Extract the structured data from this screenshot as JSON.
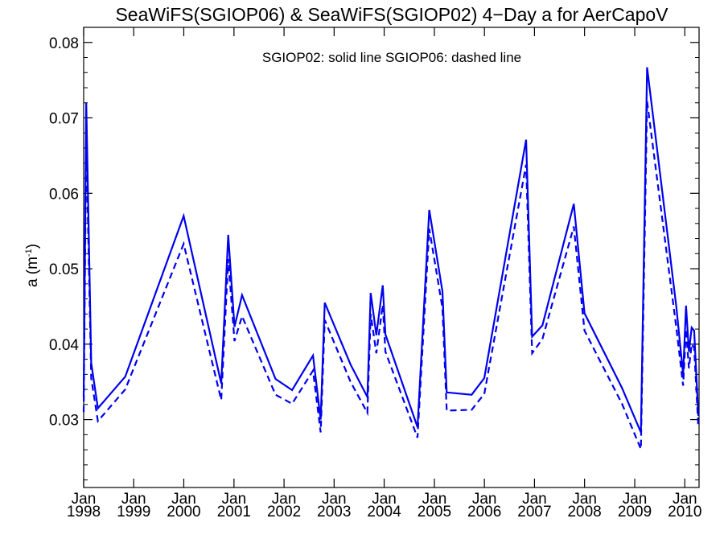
{
  "chart_data": {
    "type": "line",
    "title": "SeaWiFS(SGIOP06) & SeaWiFS(SGIOP02) 4−Day a for AerCapoV",
    "annotation": "SGIOP02: solid line   SGIOP06: dashed line",
    "ylabel": "a (m",
    "ylabel_sup": "-1",
    "ylabel_close": ")",
    "xlabel": "",
    "xlim": [
      "1998-01-01",
      "2010-04-15"
    ],
    "ylim": [
      0.021,
      0.082
    ],
    "yticks": [
      0.03,
      0.04,
      0.05,
      0.06,
      0.07,
      0.08
    ],
    "ytick_labels": [
      "0.03",
      "0.04",
      "0.05",
      "0.06",
      "0.07",
      "0.08"
    ],
    "xticks": [
      {
        "date": "1998-01-01",
        "month": "Jan",
        "year": "1998"
      },
      {
        "date": "1999-01-01",
        "month": "Jan",
        "year": "1999"
      },
      {
        "date": "2000-01-01",
        "month": "Jan",
        "year": "2000"
      },
      {
        "date": "2001-01-01",
        "month": "Jan",
        "year": "2001"
      },
      {
        "date": "2002-01-01",
        "month": "Jan",
        "year": "2002"
      },
      {
        "date": "2003-01-01",
        "month": "Jan",
        "year": "2003"
      },
      {
        "date": "2004-01-01",
        "month": "Jan",
        "year": "2004"
      },
      {
        "date": "2005-01-01",
        "month": "Jan",
        "year": "2005"
      },
      {
        "date": "2006-01-01",
        "month": "Jan",
        "year": "2006"
      },
      {
        "date": "2007-01-01",
        "month": "Jan",
        "year": "2007"
      },
      {
        "date": "2008-01-01",
        "month": "Jan",
        "year": "2008"
      },
      {
        "date": "2009-01-01",
        "month": "Jan",
        "year": "2009"
      },
      {
        "date": "2010-01-01",
        "month": "Jan",
        "year": "2010"
      }
    ],
    "grid": false,
    "series": [
      {
        "name": "SGIOP02",
        "style": "solid",
        "color": "#0000ee",
        "x": [
          "1998-01-01",
          "1998-01-20",
          "1998-02-25",
          "1998-04-15",
          "1998-10-31",
          "1999-12-31",
          "2000-09-30",
          "2000-11-20",
          "2001-01-05",
          "2001-03-01",
          "2001-10-31",
          "2002-03-01",
          "2002-07-31",
          "2002-09-25",
          "2002-10-25",
          "2003-05-01",
          "2003-09-01",
          "2003-09-25",
          "2003-11-05",
          "2003-12-22",
          "2004-01-10",
          "2004-08-31",
          "2004-11-25",
          "2005-03-01",
          "2005-04-01",
          "2005-09-30",
          "2005-12-31",
          "2006-11-01",
          "2006-12-15",
          "2007-02-28",
          "2007-10-15",
          "2008-01-01",
          "2008-09-30",
          "2009-02-15",
          "2009-04-01",
          "2009-10-31",
          "2009-12-20",
          "2010-01-10",
          "2010-01-31",
          "2010-02-20",
          "2010-03-10",
          "2010-04-10"
        ],
        "values": [
          0.033,
          0.072,
          0.0375,
          0.0315,
          0.0357,
          0.057,
          0.0348,
          0.0545,
          0.0423,
          0.0465,
          0.0354,
          0.0339,
          0.0385,
          0.03,
          0.0455,
          0.0373,
          0.033,
          0.0468,
          0.0412,
          0.0478,
          0.0413,
          0.029,
          0.0578,
          0.047,
          0.0336,
          0.0333,
          0.0355,
          0.0671,
          0.041,
          0.0425,
          0.0586,
          0.0441,
          0.0342,
          0.0283,
          0.0767,
          0.045,
          0.036,
          0.0451,
          0.039,
          0.0422,
          0.0418,
          0.0305
        ]
      },
      {
        "name": "SGIOP06",
        "style": "dashed",
        "color": "#0000ee",
        "x": [
          "1998-01-01",
          "1998-01-20",
          "1998-02-25",
          "1998-04-15",
          "1998-10-31",
          "1999-12-31",
          "2000-09-30",
          "2000-11-20",
          "2001-01-05",
          "2001-03-01",
          "2001-10-31",
          "2002-03-01",
          "2002-07-31",
          "2002-09-25",
          "2002-10-25",
          "2003-05-01",
          "2003-09-01",
          "2003-09-25",
          "2003-11-05",
          "2003-12-22",
          "2004-01-10",
          "2004-08-31",
          "2004-11-25",
          "2005-03-01",
          "2005-04-01",
          "2005-09-30",
          "2005-12-31",
          "2006-11-01",
          "2006-12-15",
          "2007-02-28",
          "2007-10-15",
          "2008-01-01",
          "2008-09-30",
          "2009-02-15",
          "2009-04-01",
          "2009-10-31",
          "2009-12-20",
          "2010-01-10",
          "2010-01-31",
          "2010-02-20",
          "2010-03-10",
          "2010-04-10"
        ],
        "values": [
          0.031,
          0.0675,
          0.0355,
          0.0298,
          0.034,
          0.0533,
          0.0326,
          0.0513,
          0.0404,
          0.0437,
          0.0333,
          0.0321,
          0.0365,
          0.0283,
          0.0432,
          0.035,
          0.0309,
          0.044,
          0.0388,
          0.0452,
          0.039,
          0.0276,
          0.0553,
          0.0448,
          0.0312,
          0.0313,
          0.0334,
          0.0638,
          0.0388,
          0.0407,
          0.0556,
          0.0418,
          0.0321,
          0.0261,
          0.0722,
          0.0422,
          0.0345,
          0.042,
          0.0368,
          0.04,
          0.0395,
          0.029
        ]
      }
    ]
  }
}
